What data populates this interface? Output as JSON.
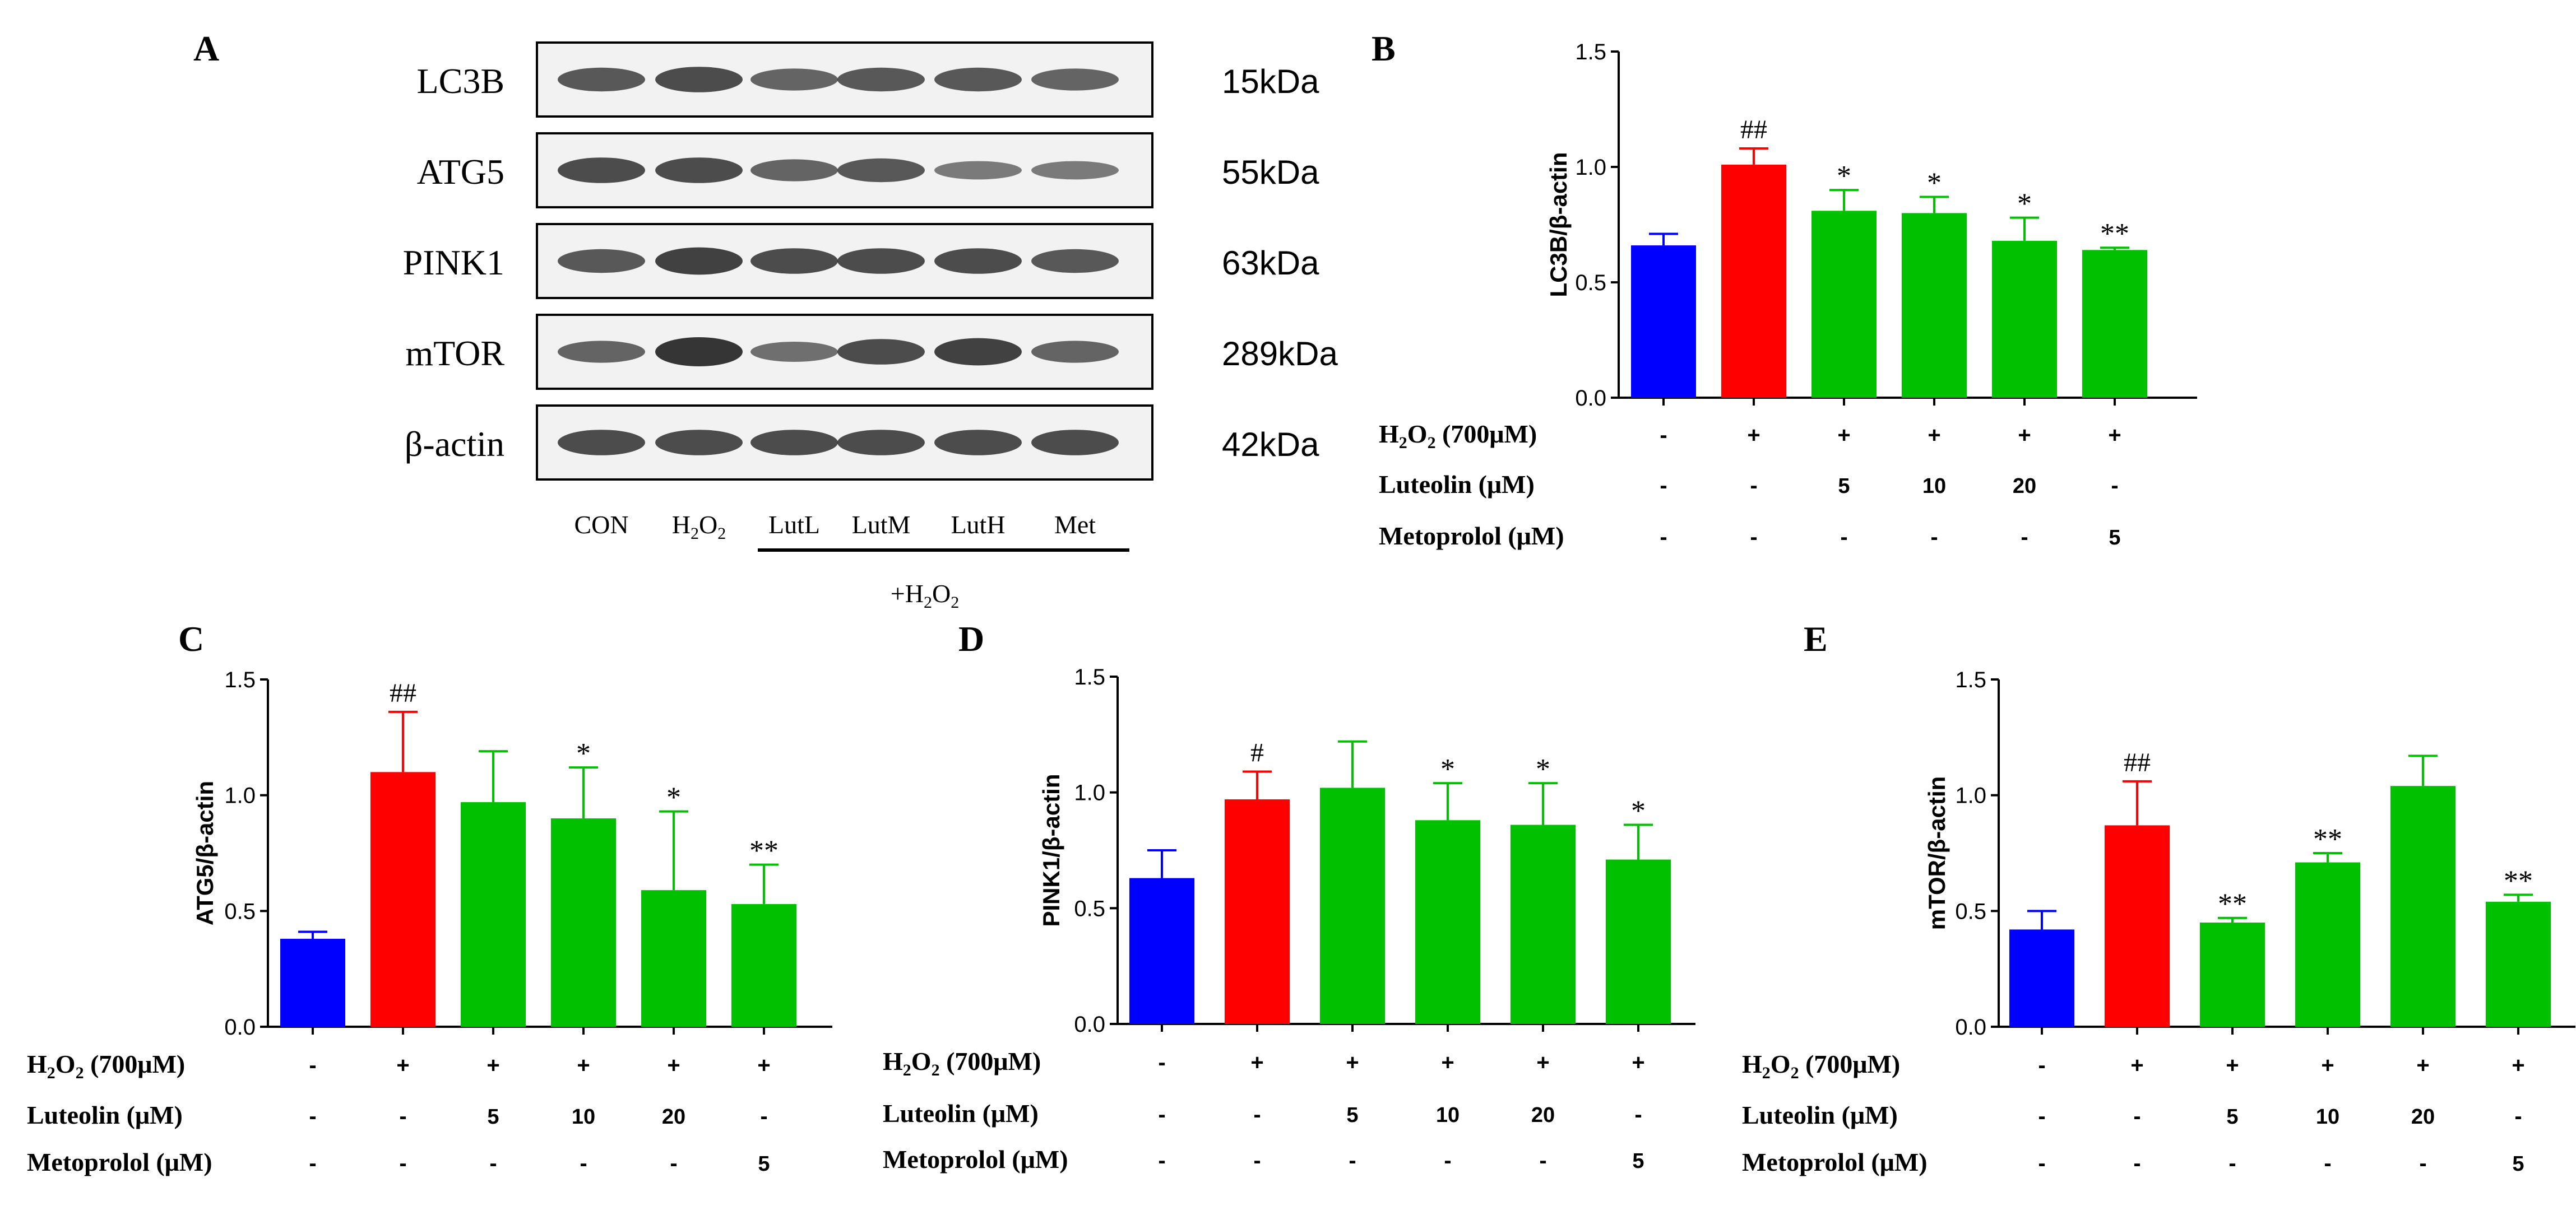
{
  "panel_labels": {
    "a": "A",
    "b": "B",
    "c": "C",
    "d": "D",
    "e": "E"
  },
  "colors": {
    "control": "#0000ff",
    "model": "#ff0000",
    "treatment": "#00c000",
    "blot_bg": "#f2f2f2",
    "band": "#202020"
  },
  "western_blot": {
    "proteins": [
      {
        "name": "LC3B",
        "mw": "15kDa"
      },
      {
        "name": "ATG5",
        "mw": "55kDa"
      },
      {
        "name": "PINK1",
        "mw": "63kDa"
      },
      {
        "name": "mTOR",
        "mw": "289kDa"
      },
      {
        "name": "β-actin",
        "mw": "42kDa"
      }
    ],
    "lanes": [
      {
        "base": "CON",
        "sub": ""
      },
      {
        "base": "H",
        "sub": "2",
        "tail": "O",
        "sub2": "2"
      },
      {
        "base": "LutL",
        "sub": ""
      },
      {
        "base": "LutM",
        "sub": ""
      },
      {
        "base": "LutH",
        "sub": ""
      },
      {
        "base": "Met",
        "sub": ""
      }
    ],
    "group_label": {
      "prefix": "+H",
      "sub": "2",
      "mid": "O",
      "sub2": "2"
    }
  },
  "conditions": {
    "rows": [
      {
        "label_pre": "H",
        "label_sub": "2",
        "label_post": "O",
        "label_sub2": "2",
        "label_tail": " (700μM)",
        "values": [
          "-",
          "+",
          "+",
          "+",
          "+",
          "+"
        ]
      },
      {
        "label_pre": "Luteolin (μM)",
        "values": [
          "-",
          "-",
          "5",
          "10",
          "20",
          "-"
        ]
      },
      {
        "label_pre": "Metoprolol (μM)",
        "values": [
          "-",
          "-",
          "-",
          "-",
          "-",
          "5"
        ]
      }
    ]
  },
  "chart_data": [
    {
      "panel": "B",
      "type": "bar",
      "ylabel": "LC3B/β-actin",
      "ylim": [
        0,
        1.5
      ],
      "yticks": [
        "0.0",
        "0.5",
        "1.0",
        "1.5"
      ],
      "values": [
        0.66,
        1.01,
        0.81,
        0.8,
        0.68,
        0.64
      ],
      "errors": [
        0.05,
        0.07,
        0.09,
        0.07,
        0.1,
        0.01
      ],
      "annotations": [
        "",
        "##",
        "*",
        "*",
        "*",
        "**"
      ]
    },
    {
      "panel": "C",
      "type": "bar",
      "ylabel": "ATG5/β-actin",
      "ylim": [
        0,
        1.5
      ],
      "yticks": [
        "0.0",
        "0.5",
        "1.0",
        "1.5"
      ],
      "values": [
        0.38,
        1.1,
        0.97,
        0.9,
        0.59,
        0.53
      ],
      "errors": [
        0.03,
        0.26,
        0.22,
        0.22,
        0.34,
        0.17
      ],
      "annotations": [
        "",
        "##",
        "",
        "*",
        "*",
        "**"
      ]
    },
    {
      "panel": "D",
      "type": "bar",
      "ylabel": "PINK1/β-actin",
      "ylim": [
        0,
        1.5
      ],
      "yticks": [
        "0.0",
        "0.5",
        "1.0",
        "1.5"
      ],
      "values": [
        0.63,
        0.97,
        1.02,
        0.88,
        0.86,
        0.71
      ],
      "errors": [
        0.12,
        0.12,
        0.2,
        0.16,
        0.18,
        0.15
      ],
      "annotations": [
        "",
        "#",
        "",
        "*",
        "*",
        "*"
      ]
    },
    {
      "panel": "E",
      "type": "bar",
      "ylabel": "mTOR/β-actin",
      "ylim": [
        0,
        1.5
      ],
      "yticks": [
        "0.0",
        "0.5",
        "1.0",
        "1.5"
      ],
      "values": [
        0.42,
        0.87,
        0.45,
        0.71,
        1.04,
        0.54
      ],
      "errors": [
        0.08,
        0.19,
        0.02,
        0.04,
        0.13,
        0.03
      ],
      "annotations": [
        "",
        "##",
        "**",
        "**",
        "",
        "**"
      ]
    }
  ]
}
